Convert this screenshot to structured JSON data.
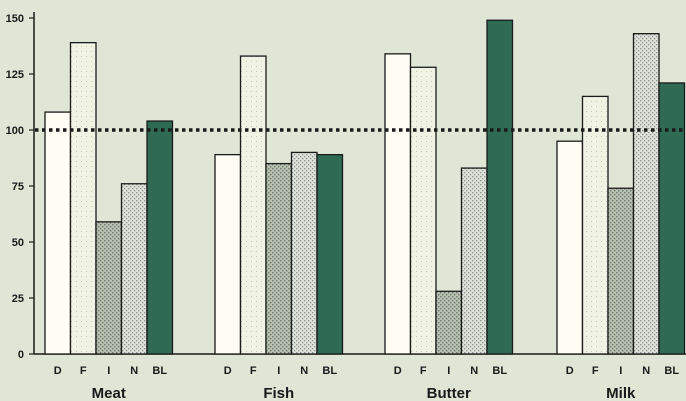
{
  "chart_data": {
    "type": "bar",
    "title": "",
    "xlabel": "",
    "ylabel": "",
    "ylim": [
      0,
      150
    ],
    "yticks": [
      0,
      25,
      50,
      75,
      100,
      125,
      150
    ],
    "reference_line": 100,
    "groups": [
      {
        "name": "Meat",
        "bars": [
          {
            "label": "D",
            "value": 108
          },
          {
            "label": "F",
            "value": 139
          },
          {
            "label": "I",
            "value": 59
          },
          {
            "label": "N",
            "value": 76
          },
          {
            "label": "BL",
            "value": 104
          }
        ]
      },
      {
        "name": "Fish",
        "bars": [
          {
            "label": "D",
            "value": 89
          },
          {
            "label": "F",
            "value": 133
          },
          {
            "label": "I",
            "value": 85
          },
          {
            "label": "N",
            "value": 90
          },
          {
            "label": "BL",
            "value": 89
          }
        ]
      },
      {
        "name": "Butter",
        "bars": [
          {
            "label": "D",
            "value": 134
          },
          {
            "label": "F",
            "value": 128
          },
          {
            "label": "I",
            "value": 28
          },
          {
            "label": "N",
            "value": 83
          },
          {
            "label": "BL",
            "value": 149
          }
        ]
      },
      {
        "name": "Milk",
        "bars": [
          {
            "label": "D",
            "value": 95
          },
          {
            "label": "F",
            "value": 115
          },
          {
            "label": "I",
            "value": 74
          },
          {
            "label": "N",
            "value": 143
          },
          {
            "label": "BL",
            "value": 121
          }
        ]
      }
    ],
    "bar_fills": {
      "D": "#fdfdf3",
      "F": "#eef1e0",
      "I": "#a9b3a3",
      "N": "#c9d0c9",
      "BL": "#2f6b53"
    },
    "colors": {
      "background": "#dfe6d6",
      "axis": "#1a1a1a",
      "bar_stroke": "#1a1a1a"
    },
    "grid": false,
    "legend": "none"
  }
}
